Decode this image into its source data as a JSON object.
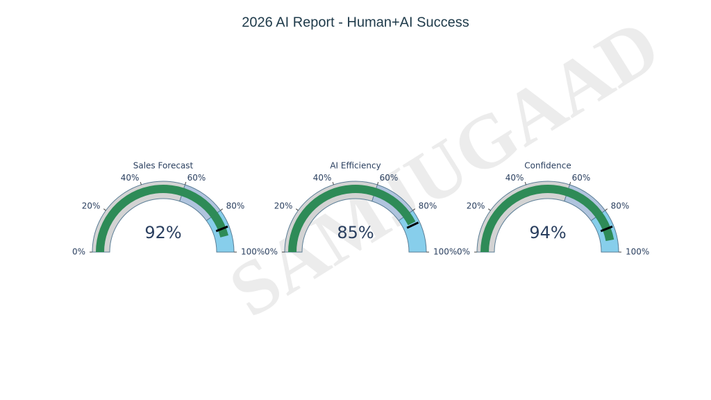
{
  "title": "2026 AI Report - Human+AI Success",
  "watermark": "SAMJUGAAD",
  "chart_data": [
    {
      "type": "gauge",
      "title": "Sales Forecast",
      "value": 92,
      "value_label": "92%",
      "range": [
        0,
        100
      ],
      "ticks": [
        {
          "value": 0,
          "label": "0%"
        },
        {
          "value": 20,
          "label": "20%"
        },
        {
          "value": 40,
          "label": "40%"
        },
        {
          "value": 60,
          "label": "60%"
        },
        {
          "value": 80,
          "label": "80%"
        },
        {
          "value": 100,
          "label": "100%"
        }
      ],
      "bar_color": "#2e8b57",
      "steps": [
        {
          "range": [
            0,
            60
          ],
          "color": "#d3d3d3"
        },
        {
          "range": [
            60,
            80
          ],
          "color": "#b0c4de"
        },
        {
          "range": [
            80,
            100
          ],
          "color": "#87ceeb"
        }
      ],
      "threshold": {
        "value": 88,
        "color": "#000000"
      }
    },
    {
      "type": "gauge",
      "title": "AI Efficiency",
      "value": 85,
      "value_label": "85%",
      "range": [
        0,
        100
      ],
      "ticks": [
        {
          "value": 0,
          "label": "0%"
        },
        {
          "value": 20,
          "label": "20%"
        },
        {
          "value": 40,
          "label": "40%"
        },
        {
          "value": 60,
          "label": "60%"
        },
        {
          "value": 80,
          "label": "80%"
        },
        {
          "value": 100,
          "label": "100%"
        }
      ],
      "bar_color": "#2e8b57",
      "steps": [
        {
          "range": [
            0,
            60
          ],
          "color": "#d3d3d3"
        },
        {
          "range": [
            60,
            80
          ],
          "color": "#b0c4de"
        },
        {
          "range": [
            80,
            100
          ],
          "color": "#87ceeb"
        }
      ],
      "threshold": {
        "value": 86,
        "color": "#000000"
      }
    },
    {
      "type": "gauge",
      "title": "Confidence",
      "value": 94,
      "value_label": "94%",
      "range": [
        0,
        100
      ],
      "ticks": [
        {
          "value": 0,
          "label": "0%"
        },
        {
          "value": 20,
          "label": "20%"
        },
        {
          "value": 40,
          "label": "40%"
        },
        {
          "value": 60,
          "label": "60%"
        },
        {
          "value": 80,
          "label": "80%"
        },
        {
          "value": 100,
          "label": "100%"
        }
      ],
      "bar_color": "#2e8b57",
      "steps": [
        {
          "range": [
            0,
            60
          ],
          "color": "#d3d3d3"
        },
        {
          "range": [
            60,
            80
          ],
          "color": "#b0c4de"
        },
        {
          "range": [
            80,
            100
          ],
          "color": "#87ceeb"
        }
      ],
      "threshold": {
        "value": 88,
        "color": "#000000"
      }
    }
  ]
}
